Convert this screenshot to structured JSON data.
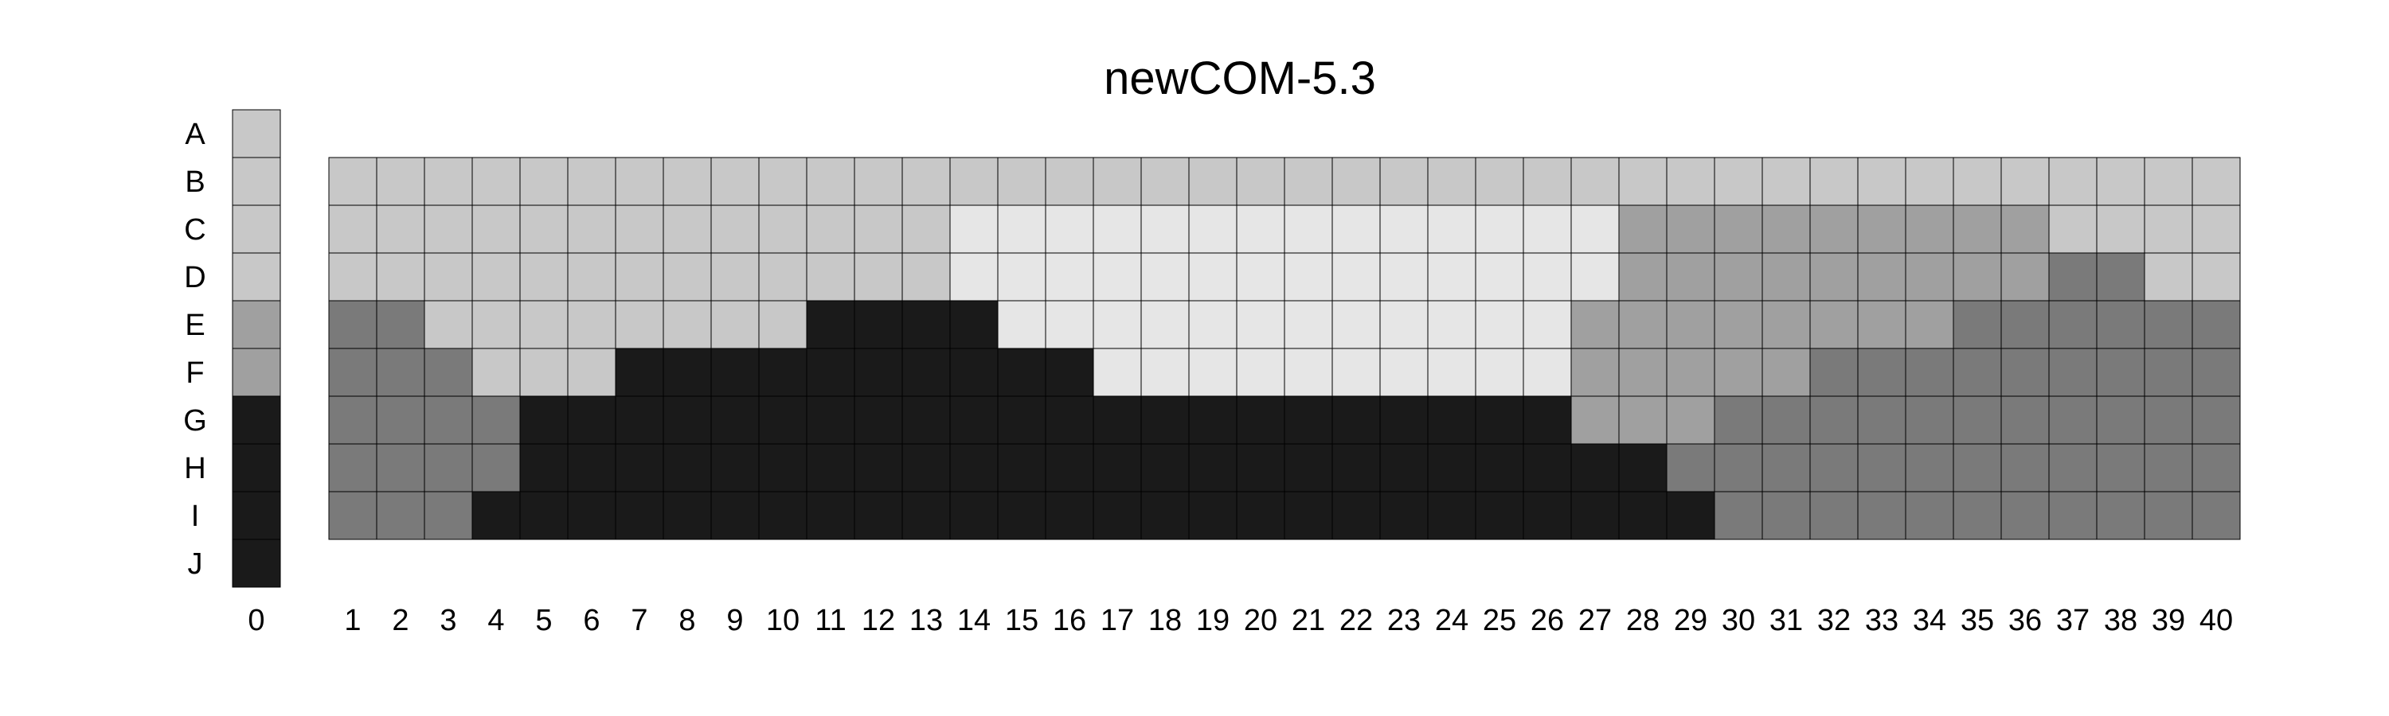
{
  "chart_data": {
    "type": "heatmap",
    "title": "newCOM-5.3",
    "rows": [
      "A",
      "B",
      "C",
      "D",
      "E",
      "F",
      "G",
      "H",
      "I",
      "J"
    ],
    "palette": {
      "1": "#c8c8c8",
      "2": "#e6e6e6",
      "3": "#a0a0a0",
      "4": "#7a7a7a",
      "5": "#1a1a1a"
    },
    "reference_column": {
      "label": "0",
      "rows": [
        "A",
        "B",
        "C",
        "D",
        "E",
        "F",
        "G",
        "H",
        "I",
        "J"
      ],
      "values": [
        1,
        1,
        1,
        1,
        3,
        3,
        5,
        5,
        5,
        5
      ]
    },
    "columns": [
      "1",
      "2",
      "3",
      "4",
      "5",
      "6",
      "7",
      "8",
      "9",
      "10",
      "11",
      "12",
      "13",
      "14",
      "15",
      "16",
      "17",
      "18",
      "19",
      "20",
      "21",
      "22",
      "23",
      "24",
      "25",
      "26",
      "27",
      "28",
      "29",
      "30",
      "31",
      "32",
      "33",
      "34",
      "35",
      "36",
      "37",
      "38",
      "39",
      "40"
    ],
    "grid_rows": [
      "B",
      "C",
      "D",
      "E",
      "F",
      "G",
      "H",
      "I"
    ],
    "values": [
      [
        1,
        1,
        1,
        1,
        1,
        1,
        1,
        1,
        1,
        1,
        1,
        1,
        1,
        1,
        1,
        1,
        1,
        1,
        1,
        1,
        1,
        1,
        1,
        1,
        1,
        1,
        1,
        1,
        1,
        1,
        1,
        1,
        1,
        1,
        1,
        1,
        1,
        1,
        1,
        1
      ],
      [
        1,
        1,
        1,
        1,
        1,
        1,
        1,
        1,
        1,
        1,
        1,
        1,
        1,
        2,
        2,
        2,
        2,
        2,
        2,
        2,
        2,
        2,
        2,
        2,
        2,
        2,
        2,
        3,
        3,
        3,
        3,
        3,
        3,
        3,
        3,
        3,
        1,
        1,
        1,
        1
      ],
      [
        1,
        1,
        1,
        1,
        1,
        1,
        1,
        1,
        1,
        1,
        1,
        1,
        1,
        2,
        2,
        2,
        2,
        2,
        2,
        2,
        2,
        2,
        2,
        2,
        2,
        2,
        2,
        3,
        3,
        3,
        3,
        3,
        3,
        3,
        3,
        3,
        4,
        4,
        1,
        1
      ],
      [
        4,
        4,
        1,
        1,
        1,
        1,
        1,
        1,
        1,
        1,
        5,
        5,
        5,
        5,
        2,
        2,
        2,
        2,
        2,
        2,
        2,
        2,
        2,
        2,
        2,
        2,
        3,
        3,
        3,
        3,
        3,
        3,
        3,
        3,
        4,
        4,
        4,
        4,
        4,
        4
      ],
      [
        4,
        4,
        4,
        1,
        1,
        1,
        5,
        5,
        5,
        5,
        5,
        5,
        5,
        5,
        5,
        5,
        2,
        2,
        2,
        2,
        2,
        2,
        2,
        2,
        2,
        2,
        3,
        3,
        3,
        3,
        3,
        4,
        4,
        4,
        4,
        4,
        4,
        4,
        4,
        4
      ],
      [
        4,
        4,
        4,
        4,
        5,
        5,
        5,
        5,
        5,
        5,
        5,
        5,
        5,
        5,
        5,
        5,
        5,
        5,
        5,
        5,
        5,
        5,
        5,
        5,
        5,
        5,
        3,
        3,
        3,
        4,
        4,
        4,
        4,
        4,
        4,
        4,
        4,
        4,
        4,
        4
      ],
      [
        4,
        4,
        4,
        4,
        5,
        5,
        5,
        5,
        5,
        5,
        5,
        5,
        5,
        5,
        5,
        5,
        5,
        5,
        5,
        5,
        5,
        5,
        5,
        5,
        5,
        5,
        5,
        5,
        4,
        4,
        4,
        4,
        4,
        4,
        4,
        4,
        4,
        4,
        4,
        4
      ],
      [
        4,
        4,
        4,
        5,
        5,
        5,
        5,
        5,
        5,
        5,
        5,
        5,
        5,
        5,
        5,
        5,
        5,
        5,
        5,
        5,
        5,
        5,
        5,
        5,
        5,
        5,
        5,
        5,
        5,
        4,
        4,
        4,
        4,
        4,
        4,
        4,
        4,
        4,
        4,
        4
      ]
    ]
  }
}
